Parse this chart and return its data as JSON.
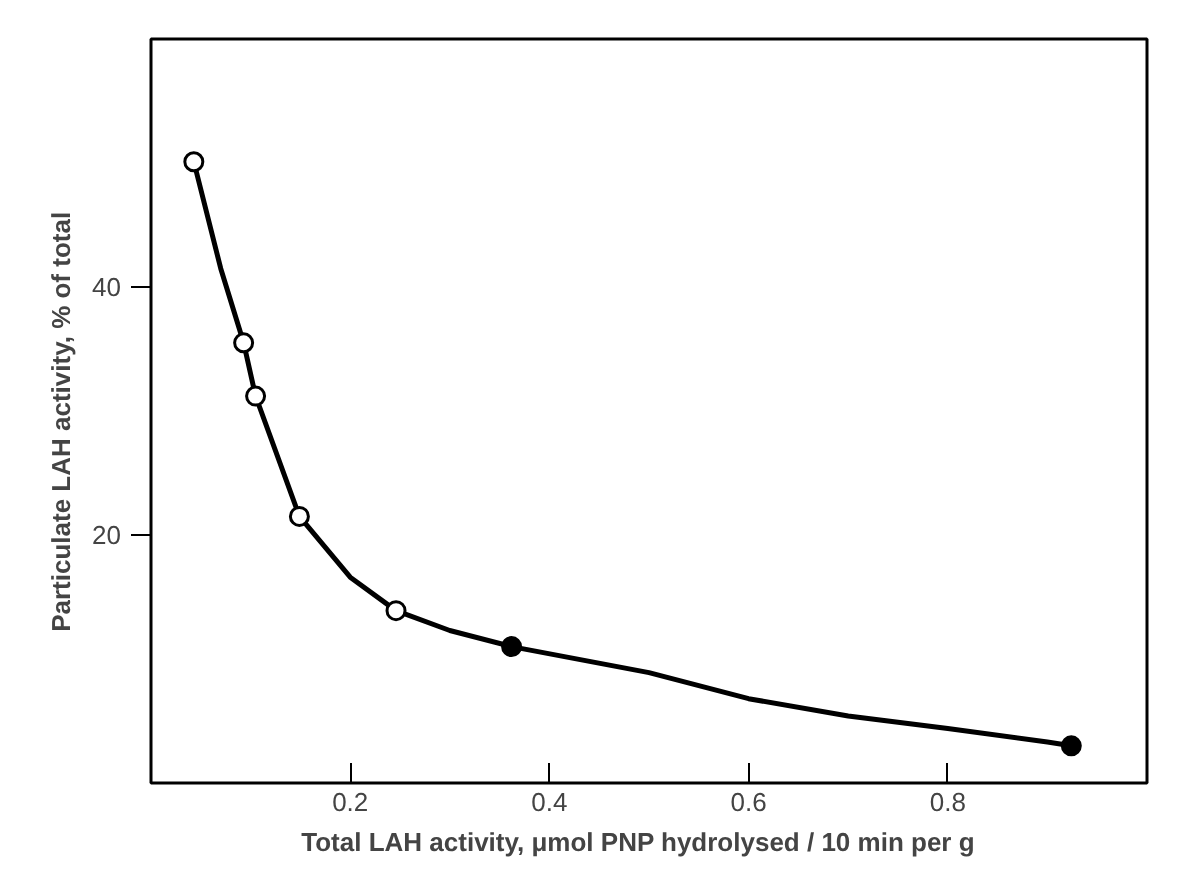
{
  "chart_data": {
    "type": "scatter",
    "xlabel": "Total LAH activity,    μmol PNP hydrolysed / 10 min per g",
    "ylabel": "Particulate LAH activity,    % of total",
    "xlim": [
      0,
      1.0
    ],
    "ylim": [
      0,
      60
    ],
    "xticks": [
      0.2,
      0.4,
      0.6,
      0.8
    ],
    "yticks": [
      20,
      40
    ],
    "grid": false,
    "series": [
      {
        "type": "line",
        "color": "#000000",
        "marker": "none",
        "line_style": "solid",
        "x": [
          0.043,
          0.07,
          0.093,
          0.105,
          0.149,
          0.2,
          0.246,
          0.3,
          0.362,
          0.5,
          0.6,
          0.7,
          0.8,
          0.9,
          0.924
        ],
        "values": [
          50.1,
          41.5,
          35.5,
          31.2,
          21.5,
          16.6,
          13.9,
          12.3,
          11.0,
          8.9,
          6.8,
          5.4,
          4.4,
          3.3,
          3.0
        ]
      },
      {
        "color": "#ffffff",
        "marker": "circle",
        "x": [
          0.043,
          0.093,
          0.105,
          0.149,
          0.246
        ],
        "values": [
          50.1,
          35.5,
          31.2,
          21.5,
          13.9
        ]
      },
      {
        "color": "#000000",
        "marker": "circle",
        "x": [
          0.362,
          0.924
        ],
        "values": [
          11.0,
          3.0
        ]
      }
    ]
  }
}
